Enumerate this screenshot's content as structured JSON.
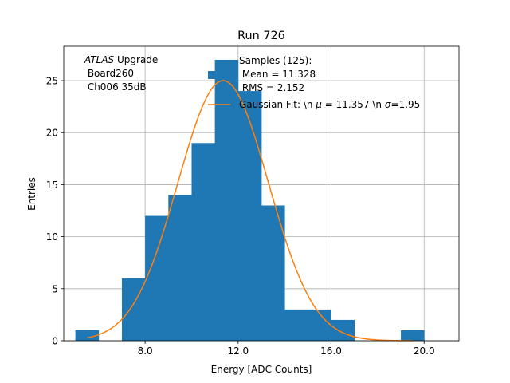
{
  "chart_data": {
    "type": "bar",
    "title": "Run 726",
    "xlabel": "Energy [ADC Counts]",
    "ylabel": "Entries",
    "xlim": [
      4.5,
      21.5
    ],
    "ylim": [
      0,
      28.3
    ],
    "grid": true,
    "x_ticks": [
      8.0,
      12.0,
      16.0,
      20.0
    ],
    "x_tick_labels": [
      "8.0",
      "12.0",
      "16.0",
      "20.0"
    ],
    "y_ticks": [
      0,
      5,
      10,
      15,
      20,
      25
    ],
    "y_tick_labels": [
      "0",
      "5",
      "10",
      "15",
      "20",
      "25"
    ],
    "bins": [
      {
        "start": 5,
        "end": 6,
        "count": 1
      },
      {
        "start": 7,
        "end": 8,
        "count": 6
      },
      {
        "start": 8,
        "end": 9,
        "count": 12
      },
      {
        "start": 9,
        "end": 10,
        "count": 14
      },
      {
        "start": 10,
        "end": 11,
        "count": 19
      },
      {
        "start": 11,
        "end": 12,
        "count": 27
      },
      {
        "start": 12,
        "end": 13,
        "count": 24
      },
      {
        "start": 13,
        "end": 14,
        "count": 13
      },
      {
        "start": 14,
        "end": 15,
        "count": 3
      },
      {
        "start": 15,
        "end": 16,
        "count": 3
      },
      {
        "start": 16,
        "end": 17,
        "count": 2
      },
      {
        "start": 19,
        "end": 20,
        "count": 1
      }
    ],
    "fit": {
      "mu": 11.357,
      "sigma": 1.95,
      "amplitude": 25.0,
      "x_range": [
        5.5,
        19.5
      ]
    },
    "series_colors": {
      "histogram": "#1f77b4",
      "fit": "#ff7f0e"
    },
    "annotation": {
      "line1_italic": "ATLAS",
      "line1_rest": " Upgrade",
      "line2": " Board260",
      "line3": " Ch006 35dB"
    },
    "legend": {
      "placement": "top-right",
      "hist_lines": [
        "Samples (125):",
        " Mean = 11.328",
        " RMS = 2.152"
      ],
      "fit_label_pre": "Gaussian Fit: \\n ",
      "fit_label_mu": "μ",
      "fit_label_mid": " = 11.357 \\n ",
      "fit_label_sigma": "σ",
      "fit_label_post": "=1.95"
    }
  }
}
